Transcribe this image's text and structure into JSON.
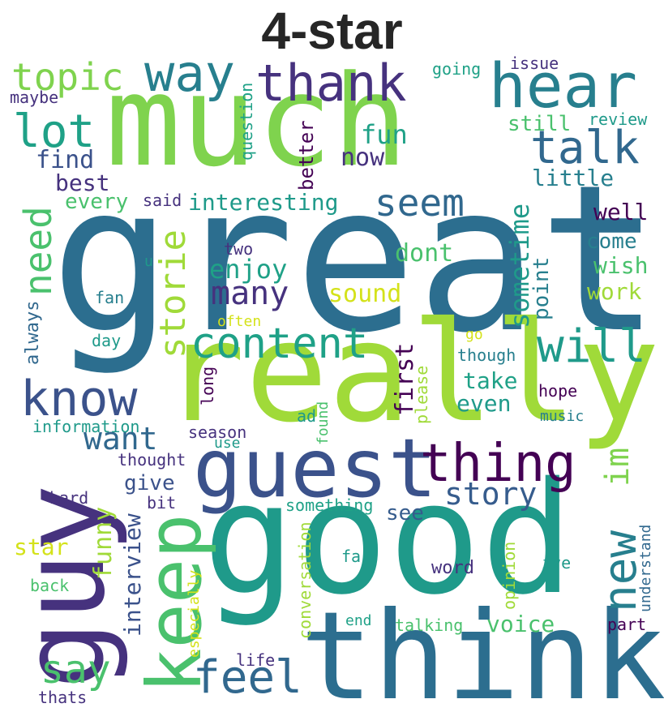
{
  "title": "4-star",
  "colors": {
    "background": "#ffffff",
    "title": "#262626",
    "palette": [
      "#440154",
      "#46327e",
      "#365c8d",
      "#277f8e",
      "#1fa187",
      "#4ac16d",
      "#7fd34e",
      "#a0da39",
      "#d4e21a"
    ]
  },
  "words": [
    {
      "text": "much",
      "color": "#7fd34e"
    },
    {
      "text": "great",
      "color": "#2c6e8f"
    },
    {
      "text": "really",
      "color": "#a0da39"
    },
    {
      "text": "good",
      "color": "#1f9a8a"
    },
    {
      "text": "think",
      "color": "#2c6e8f"
    },
    {
      "text": "guy",
      "color": "#46327e"
    },
    {
      "text": "hear",
      "color": "#277f8e"
    },
    {
      "text": "guest",
      "color": "#3b528b"
    },
    {
      "text": "thank",
      "color": "#46327e"
    },
    {
      "text": "keep",
      "color": "#4ac16d"
    },
    {
      "text": "way",
      "color": "#277f8e"
    },
    {
      "text": "topic",
      "color": "#7fd34e"
    },
    {
      "text": "lot",
      "color": "#1fa187"
    },
    {
      "text": "talk",
      "color": "#31688e"
    },
    {
      "text": "know",
      "color": "#3b528b"
    },
    {
      "text": "thing",
      "color": "#440154"
    },
    {
      "text": "content",
      "color": "#1fa187"
    },
    {
      "text": "will",
      "color": "#1f9a8a"
    },
    {
      "text": "need",
      "color": "#4ac16d"
    },
    {
      "text": "seem",
      "color": "#31688e"
    },
    {
      "text": "new",
      "color": "#277f8e"
    },
    {
      "text": "feel",
      "color": "#31688e"
    },
    {
      "text": "say",
      "color": "#4ac16d"
    },
    {
      "text": "storie",
      "color": "#a0da39"
    },
    {
      "text": "many",
      "color": "#46327e"
    },
    {
      "text": "want",
      "color": "#31688e"
    },
    {
      "text": "story",
      "color": "#365c8d"
    },
    {
      "text": "im",
      "color": "#7fd34e"
    },
    {
      "text": "fun",
      "color": "#1fa187"
    },
    {
      "text": "find",
      "color": "#3b528b"
    },
    {
      "text": "now",
      "color": "#46327e"
    },
    {
      "text": "still",
      "color": "#4ac16d"
    },
    {
      "text": "little",
      "color": "#277f8e"
    },
    {
      "text": "best",
      "color": "#46327e"
    },
    {
      "text": "every",
      "color": "#4ac16d"
    },
    {
      "text": "interesting",
      "color": "#1f9a8a"
    },
    {
      "text": "enjoy",
      "color": "#1fa187"
    },
    {
      "text": "sometime",
      "color": "#1f9a8a"
    },
    {
      "text": "well",
      "color": "#440154"
    },
    {
      "text": "come",
      "color": "#277f8e"
    },
    {
      "text": "wish",
      "color": "#4ac16d"
    },
    {
      "text": "work",
      "color": "#a0da39"
    },
    {
      "text": "dont",
      "color": "#4ac16d"
    },
    {
      "text": "sound",
      "color": "#d4e21a"
    },
    {
      "text": "point",
      "color": "#277f8e"
    },
    {
      "text": "first",
      "color": "#440154"
    },
    {
      "text": "take",
      "color": "#1fa187"
    },
    {
      "text": "even",
      "color": "#1f9a8a"
    },
    {
      "text": "give",
      "color": "#3b528b"
    },
    {
      "text": "see",
      "color": "#365c8d"
    },
    {
      "text": "voice",
      "color": "#4ac16d"
    },
    {
      "text": "funny",
      "color": "#a0da39"
    },
    {
      "text": "interview",
      "color": "#3b528b"
    },
    {
      "text": "star",
      "color": "#d4e21a"
    },
    {
      "text": "better",
      "color": "#440154"
    },
    {
      "text": "question",
      "color": "#1fa187"
    },
    {
      "text": "going",
      "color": "#1fa187"
    },
    {
      "text": "issue",
      "color": "#46327e"
    },
    {
      "text": "review",
      "color": "#1f9a8a"
    },
    {
      "text": "maybe",
      "color": "#46327e"
    },
    {
      "text": "said",
      "color": "#46327e"
    },
    {
      "text": "two",
      "color": "#46327e"
    },
    {
      "text": "u",
      "color": "#1f9a8a"
    },
    {
      "text": "fan",
      "color": "#277f8e"
    },
    {
      "text": "always",
      "color": "#31688e"
    },
    {
      "text": "often",
      "color": "#d4e21a"
    },
    {
      "text": "day",
      "color": "#1f9a8a"
    },
    {
      "text": "go",
      "color": "#d4e21a"
    },
    {
      "text": "though",
      "color": "#277f8e"
    },
    {
      "text": "hope",
      "color": "#440154"
    },
    {
      "text": "music",
      "color": "#277f8e"
    },
    {
      "text": "long",
      "color": "#440154"
    },
    {
      "text": "please",
      "color": "#a0da39"
    },
    {
      "text": "ad",
      "color": "#1f9a8a"
    },
    {
      "text": "found",
      "color": "#4ac16d"
    },
    {
      "text": "information",
      "color": "#1f9a8a"
    },
    {
      "text": "season",
      "color": "#46327e"
    },
    {
      "text": "use",
      "color": "#1f9a8a"
    },
    {
      "text": "thought",
      "color": "#46327e"
    },
    {
      "text": "hard",
      "color": "#46327e"
    },
    {
      "text": "bit",
      "color": "#46327e"
    },
    {
      "text": "something",
      "color": "#1fa187"
    },
    {
      "text": "conversation",
      "color": "#a0da39"
    },
    {
      "text": "far",
      "color": "#1f9a8a"
    },
    {
      "text": "word",
      "color": "#46327e"
    },
    {
      "text": "ive",
      "color": "#1f9a8a"
    },
    {
      "text": "opinion",
      "color": "#a0da39"
    },
    {
      "text": "understand",
      "color": "#31688e"
    },
    {
      "text": "back",
      "color": "#4ac16d"
    },
    {
      "text": "especially",
      "color": "#d4e21a"
    },
    {
      "text": "end",
      "color": "#1fa187"
    },
    {
      "text": "talking",
      "color": "#4ac16d"
    },
    {
      "text": "part",
      "color": "#440154"
    },
    {
      "text": "life",
      "color": "#46327e"
    },
    {
      "text": "thats",
      "color": "#46327e"
    }
  ]
}
